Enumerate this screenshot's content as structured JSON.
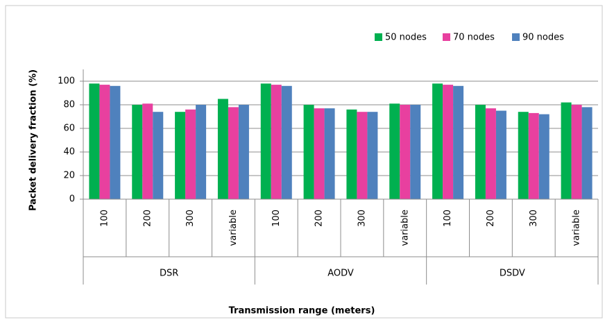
{
  "chart_data": {
    "type": "bar",
    "x_label": "Transmission range (meters)",
    "y_label": "Packet delivery fraction (%)",
    "categories": [
      "100",
      "200",
      "300",
      "variable",
      "100",
      "200",
      "300",
      "variable",
      "100",
      "200",
      "300",
      "variable"
    ],
    "groups": [
      "DSR",
      "AODV",
      "DSDV"
    ],
    "series": [
      {
        "name": "50 nodes",
        "color": "#00b050",
        "values": [
          98,
          80,
          74,
          85,
          98,
          80,
          76,
          81,
          98,
          80,
          74,
          82
        ]
      },
      {
        "name": "70 nodes",
        "color": "#e8409f",
        "values": [
          97,
          81,
          76,
          78,
          97,
          77,
          74,
          80,
          97,
          77,
          73,
          80
        ]
      },
      {
        "name": "90 nodes",
        "color": "#4f81bd",
        "values": [
          96,
          74,
          80,
          80,
          96,
          77,
          74,
          80,
          96,
          75,
          72,
          78
        ]
      }
    ],
    "ylim": [
      0,
      100
    ],
    "yticks": [
      0,
      20,
      40,
      60,
      80,
      100
    ],
    "grid": true,
    "legend": "top-right"
  }
}
